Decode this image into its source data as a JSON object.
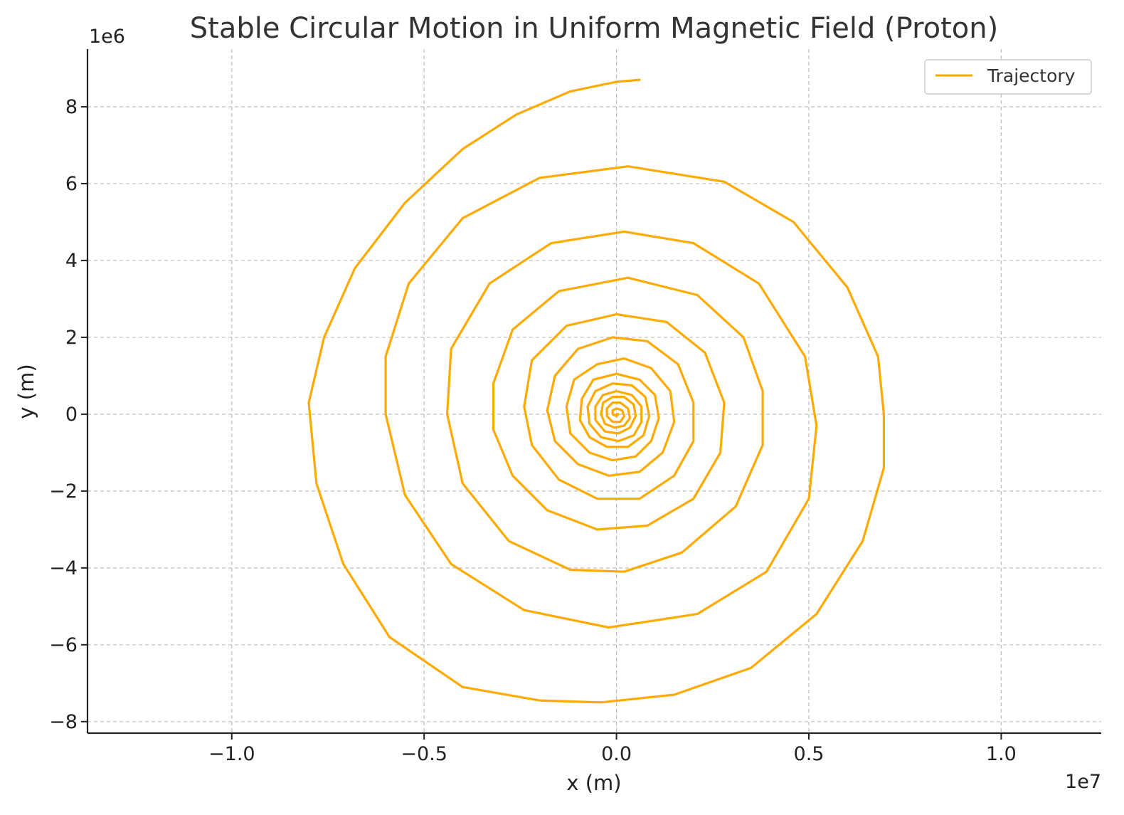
{
  "chart_data": {
    "type": "line",
    "title": "Stable Circular Motion in Uniform Magnetic Field (Proton)",
    "xlabel": "x (m)",
    "ylabel": "y (m)",
    "x_offset_label": "1e7",
    "y_offset_label": "1e6",
    "x_scale": 10000000,
    "y_scale": 1000000,
    "xlim": [
      -13750000,
      12600000
    ],
    "ylim": [
      -8300000,
      9500000
    ],
    "x_ticks": [
      {
        "value": -10000000,
        "label": "−1.0"
      },
      {
        "value": -5000000,
        "label": "−0.5"
      },
      {
        "value": 0,
        "label": "0.0"
      },
      {
        "value": 5000000,
        "label": "0.5"
      },
      {
        "value": 10000000,
        "label": "1.0"
      }
    ],
    "y_ticks": [
      {
        "value": -8000000,
        "label": "−8"
      },
      {
        "value": -6000000,
        "label": "−6"
      },
      {
        "value": -4000000,
        "label": "−4"
      },
      {
        "value": -2000000,
        "label": "−2"
      },
      {
        "value": 0,
        "label": "0"
      },
      {
        "value": 2000000,
        "label": "2"
      },
      {
        "value": 4000000,
        "label": "4"
      },
      {
        "value": 6000000,
        "label": "6"
      },
      {
        "value": 8000000,
        "label": "8"
      }
    ],
    "grid": true,
    "legend": {
      "position": "top-right",
      "entries": [
        "Trajectory"
      ]
    },
    "colors": {
      "trajectory": "#FFAA00",
      "grid": "#BDBDBD",
      "axis": "#222222"
    },
    "series": [
      {
        "name": "Trajectory",
        "description_points": "spiral turns",
        "points": [
          [
            600000,
            8700000
          ],
          [
            0,
            8650000
          ],
          [
            -1200000,
            8400000
          ],
          [
            -2600000,
            7800000
          ],
          [
            -4000000,
            6900000
          ],
          [
            -5500000,
            5500000
          ],
          [
            -6800000,
            3800000
          ],
          [
            -7600000,
            2000000
          ],
          [
            -8000000,
            300000
          ],
          [
            -7800000,
            -1800000
          ],
          [
            -7100000,
            -3900000
          ],
          [
            -5900000,
            -5800000
          ],
          [
            -4000000,
            -7100000
          ],
          [
            -2000000,
            -7450000
          ],
          [
            -400000,
            -7500000
          ],
          [
            1500000,
            -7300000
          ],
          [
            3500000,
            -6600000
          ],
          [
            5200000,
            -5200000
          ],
          [
            6400000,
            -3300000
          ],
          [
            6950000,
            -1400000
          ],
          [
            6950000,
            0
          ],
          [
            6800000,
            1500000
          ],
          [
            6000000,
            3300000
          ],
          [
            4600000,
            5000000
          ],
          [
            2800000,
            6050000
          ],
          [
            300000,
            6450000
          ],
          [
            -2000000,
            6150000
          ],
          [
            -4000000,
            5100000
          ],
          [
            -5400000,
            3400000
          ],
          [
            -6000000,
            1500000
          ],
          [
            -6000000,
            0
          ],
          [
            -5500000,
            -2100000
          ],
          [
            -4300000,
            -3900000
          ],
          [
            -2400000,
            -5100000
          ],
          [
            -200000,
            -5550000
          ],
          [
            2100000,
            -5200000
          ],
          [
            3900000,
            -4100000
          ],
          [
            5000000,
            -2200000
          ],
          [
            5200000,
            -300000
          ],
          [
            4900000,
            1500000
          ],
          [
            3700000,
            3400000
          ],
          [
            2000000,
            4450000
          ],
          [
            200000,
            4750000
          ],
          [
            -1700000,
            4450000
          ],
          [
            -3300000,
            3400000
          ],
          [
            -4300000,
            1700000
          ],
          [
            -4400000,
            0
          ],
          [
            -4000000,
            -1800000
          ],
          [
            -2800000,
            -3300000
          ],
          [
            -1200000,
            -4050000
          ],
          [
            200000,
            -4100000
          ],
          [
            1700000,
            -3600000
          ],
          [
            3100000,
            -2400000
          ],
          [
            3800000,
            -800000
          ],
          [
            3800000,
            600000
          ],
          [
            3300000,
            2000000
          ],
          [
            2100000,
            3100000
          ],
          [
            300000,
            3550000
          ],
          [
            -1500000,
            3200000
          ],
          [
            -2700000,
            2200000
          ],
          [
            -3200000,
            800000
          ],
          [
            -3200000,
            -400000
          ],
          [
            -2700000,
            -1600000
          ],
          [
            -1800000,
            -2500000
          ],
          [
            -500000,
            -3000000
          ],
          [
            800000,
            -2900000
          ],
          [
            2000000,
            -2200000
          ],
          [
            2700000,
            -1000000
          ],
          [
            2800000,
            300000
          ],
          [
            2300000,
            1600000
          ],
          [
            1300000,
            2400000
          ],
          [
            0,
            2600000
          ],
          [
            -1300000,
            2300000
          ],
          [
            -2200000,
            1400000
          ],
          [
            -2400000,
            200000
          ],
          [
            -2200000,
            -800000
          ],
          [
            -1500000,
            -1700000
          ],
          [
            -500000,
            -2200000
          ],
          [
            600000,
            -2200000
          ],
          [
            1500000,
            -1600000
          ],
          [
            2000000,
            -700000
          ],
          [
            2000000,
            300000
          ],
          [
            1600000,
            1300000
          ],
          [
            800000,
            1900000
          ],
          [
            -100000,
            2000000
          ],
          [
            -1000000,
            1700000
          ],
          [
            -1600000,
            1000000
          ],
          [
            -1800000,
            100000
          ],
          [
            -1600000,
            -700000
          ],
          [
            -1000000,
            -1300000
          ],
          [
            -200000,
            -1600000
          ],
          [
            600000,
            -1500000
          ],
          [
            1200000,
            -1000000
          ],
          [
            1500000,
            -200000
          ],
          [
            1400000,
            600000
          ],
          [
            900000,
            1200000
          ],
          [
            200000,
            1450000
          ],
          [
            -500000,
            1300000
          ],
          [
            -1100000,
            900000
          ],
          [
            -1300000,
            200000
          ],
          [
            -1200000,
            -500000
          ],
          [
            -700000,
            -1000000
          ],
          [
            -100000,
            -1200000
          ],
          [
            500000,
            -1100000
          ],
          [
            900000,
            -700000
          ],
          [
            1100000,
            -100000
          ],
          [
            1000000,
            500000
          ],
          [
            600000,
            900000
          ],
          [
            0,
            1050000
          ],
          [
            -600000,
            900000
          ],
          [
            -900000,
            400000
          ],
          [
            -950000,
            -150000
          ],
          [
            -700000,
            -600000
          ],
          [
            -250000,
            -850000
          ],
          [
            300000,
            -850000
          ],
          [
            700000,
            -550000
          ],
          [
            850000,
            -50000
          ],
          [
            750000,
            450000
          ],
          [
            400000,
            750000
          ],
          [
            -100000,
            800000
          ],
          [
            -550000,
            600000
          ],
          [
            -750000,
            200000
          ],
          [
            -700000,
            -250000
          ],
          [
            -400000,
            -600000
          ],
          [
            50000,
            -700000
          ],
          [
            450000,
            -550000
          ],
          [
            650000,
            -200000
          ],
          [
            650000,
            200000
          ],
          [
            400000,
            500000
          ],
          [
            0,
            600000
          ],
          [
            -350000,
            500000
          ],
          [
            -550000,
            200000
          ],
          [
            -550000,
            -150000
          ],
          [
            -300000,
            -450000
          ],
          [
            50000,
            -500000
          ],
          [
            350000,
            -350000
          ],
          [
            500000,
            -50000
          ],
          [
            450000,
            250000
          ],
          [
            200000,
            450000
          ],
          [
            -100000,
            450000
          ],
          [
            -350000,
            300000
          ],
          [
            -400000,
            0
          ],
          [
            -300000,
            -250000
          ],
          [
            -50000,
            -350000
          ],
          [
            200000,
            -300000
          ],
          [
            350000,
            -100000
          ],
          [
            300000,
            150000
          ],
          [
            100000,
            300000
          ],
          [
            -100000,
            300000
          ],
          [
            -250000,
            150000
          ],
          [
            -250000,
            -50000
          ],
          [
            -100000,
            -200000
          ],
          [
            100000,
            -200000
          ],
          [
            200000,
            -50000
          ],
          [
            150000,
            100000
          ],
          [
            0,
            150000
          ],
          [
            -100000,
            100000
          ],
          [
            -100000,
            0
          ],
          [
            0,
            -50000
          ],
          [
            50000,
            0
          ],
          [
            0,
            0
          ]
        ]
      }
    ]
  }
}
